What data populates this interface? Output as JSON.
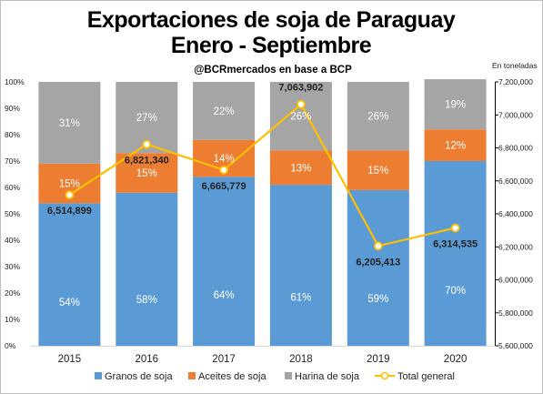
{
  "chart_data": {
    "type": "bar",
    "stacked": true,
    "title": "Exportaciones de soja de Paraguay",
    "subtitle": "Enero - Septiembre",
    "source_note": "@BCRmercados en base a BCP",
    "right_axis_unit": "En toneladas",
    "categories": [
      "2015",
      "2016",
      "2017",
      "2018",
      "2019",
      "2020"
    ],
    "series": [
      {
        "name": "Granos de soja",
        "color": "#5b9bd5",
        "values": [
          54,
          58,
          64,
          61,
          59,
          70
        ],
        "labels": [
          "54%",
          "58%",
          "64%",
          "61%",
          "59%",
          "70%"
        ]
      },
      {
        "name": "Aceites de soja",
        "color": "#ed7d31",
        "values": [
          15,
          15,
          14,
          13,
          15,
          12
        ],
        "labels": [
          "15%",
          "15%",
          "14%",
          "13%",
          "15%",
          "12%"
        ]
      },
      {
        "name": "Harina de soja",
        "color": "#a5a5a5",
        "values": [
          31,
          27,
          22,
          26,
          26,
          19
        ],
        "labels": [
          "31%",
          "27%",
          "22%",
          "26%",
          "26%",
          "19%"
        ]
      }
    ],
    "line_series": {
      "name": "Total general",
      "color": "#ffc000",
      "values": [
        6514899,
        6821340,
        6665779,
        7063902,
        6205413,
        6314535
      ],
      "labels": [
        "6,514,899",
        "6,821,340",
        "6,665,779",
        "7,063,902",
        "6,205,413",
        "6,314,535"
      ]
    },
    "left_axis": {
      "ylim": [
        0,
        100
      ],
      "ticks": [
        "0%",
        "10%",
        "20%",
        "30%",
        "40%",
        "50%",
        "60%",
        "70%",
        "80%",
        "90%",
        "100%"
      ]
    },
    "right_axis": {
      "ylim": [
        5600000,
        7200000
      ],
      "ticks": [
        "5,600,000",
        "5,800,000",
        "6,000,000",
        "6,200,000",
        "6,400,000",
        "6,600,000",
        "6,800,000",
        "7,000,000",
        "7,200,000"
      ]
    },
    "legend": {
      "position": "bottom"
    },
    "grid": false
  }
}
